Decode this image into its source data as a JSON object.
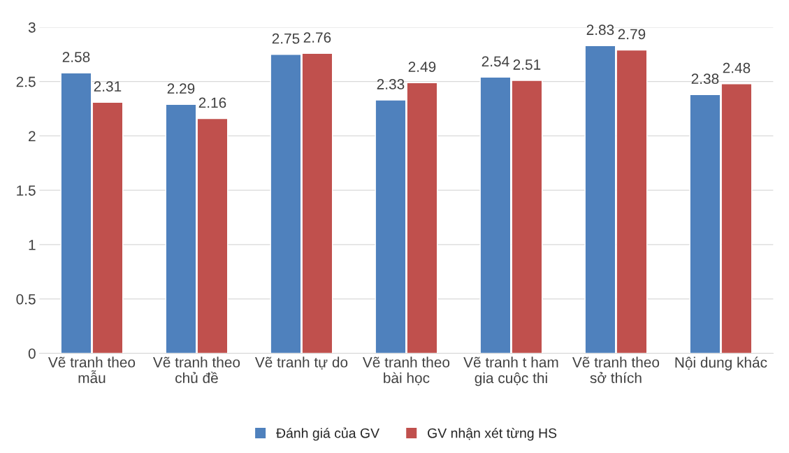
{
  "chart_data": {
    "type": "bar",
    "categories": [
      "Vẽ tranh theo mẫu",
      "Vẽ tranh theo chủ đề",
      "Vẽ tranh tự do",
      "Vẽ tranh theo bài học",
      "Vẽ tranh t ham gia cuộc thi",
      "Vẽ tranh theo sở thích",
      "Nội dung khác"
    ],
    "series": [
      {
        "name": "Đánh giá của GV",
        "color": "#4f81bd",
        "values": [
          2.58,
          2.29,
          2.75,
          2.33,
          2.54,
          2.83,
          2.38
        ]
      },
      {
        "name": "GV nhận xét từng HS",
        "color": "#c0504d",
        "values": [
          2.31,
          2.16,
          2.76,
          2.49,
          2.51,
          2.79,
          2.48
        ]
      }
    ],
    "ylim": [
      0,
      3
    ],
    "yticks": [
      0,
      0.5,
      1,
      1.5,
      2,
      2.5,
      3
    ],
    "grid": "y",
    "legend": "bottom",
    "data_labels": true
  }
}
